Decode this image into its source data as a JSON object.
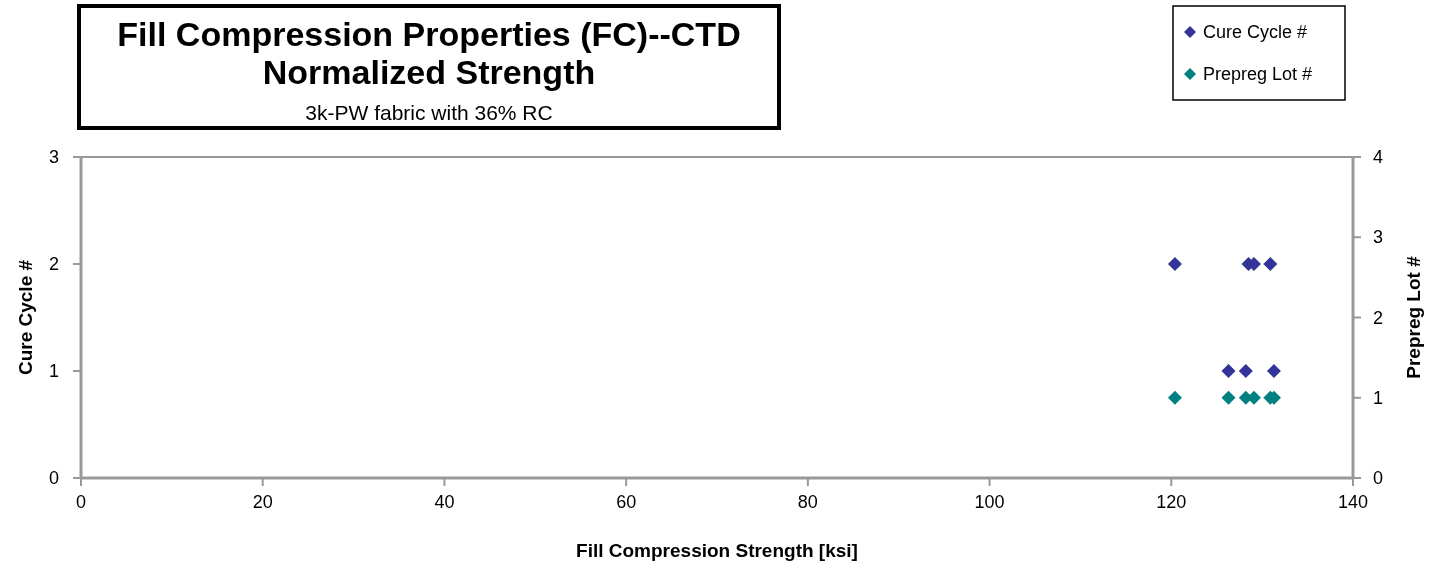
{
  "chart_data": {
    "type": "scatter",
    "title": "Fill Compression Properties (FC)--CTD Normalized Strength",
    "subtitle": "3k-PW fabric with 36% RC",
    "xlabel": "Fill Compression Strength [ksi]",
    "ylabel": "Cure Cycle #",
    "y2label": "Prepreg Lot #",
    "xlim": [
      0,
      140
    ],
    "xticks": [
      0,
      20,
      40,
      60,
      80,
      100,
      120,
      140
    ],
    "ylim": [
      0,
      3
    ],
    "yticks": [
      0,
      1,
      2,
      3
    ],
    "y2lim": [
      0,
      4
    ],
    "y2ticks": [
      0,
      1,
      2,
      3,
      4
    ],
    "marker": "diamond",
    "legend": "top right",
    "grid": false,
    "series": [
      {
        "name": "Cure Cycle #",
        "color": "#333399",
        "x": [
          120.4,
          128.5,
          129.1,
          130.9,
          126.3,
          128.2,
          131.3
        ],
        "values": [
          2,
          2,
          2,
          2,
          1,
          1,
          1
        ]
      },
      {
        "name": "Prepreg Lot #",
        "color": "#008080",
        "axis": "y2",
        "x": [
          120.4,
          126.3,
          128.2,
          129.1,
          130.9,
          131.3
        ],
        "values": [
          1,
          1,
          1,
          1,
          1,
          1
        ]
      }
    ]
  }
}
